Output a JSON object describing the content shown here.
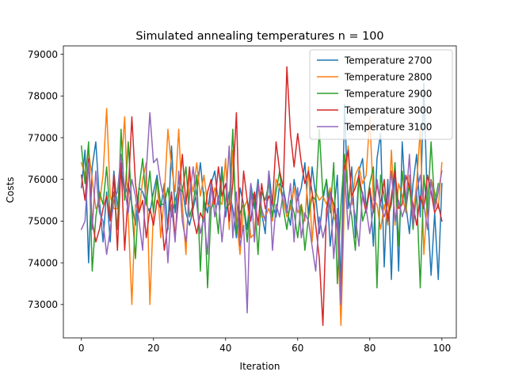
{
  "chart_data": {
    "type": "line",
    "title": "Simulated annealing temperatures n = 100",
    "xlabel": "Iteration",
    "ylabel": "Costs",
    "xlim": [
      -5,
      104
    ],
    "ylim": [
      72200,
      79200
    ],
    "xticks": [
      0,
      20,
      40,
      60,
      80,
      100
    ],
    "yticks": [
      73000,
      74000,
      75000,
      76000,
      77000,
      78000,
      79000
    ],
    "grid": false,
    "legend_position": "top-right",
    "series": [
      {
        "name": "Temperature 2700",
        "color": "#1f77b4",
        "values": [
          75800,
          76700,
          74000,
          76300,
          76900,
          75500,
          74500,
          75700,
          74500,
          76200,
          75300,
          76300,
          75600,
          75900,
          75400,
          74900,
          75800,
          75700,
          75400,
          75200,
          75700,
          76100,
          75300,
          75900,
          74800,
          76800,
          75200,
          76000,
          75800,
          75200,
          74900,
          75300,
          75700,
          76400,
          75500,
          75200,
          75900,
          76200,
          75400,
          76300,
          75100,
          75700,
          75300,
          74600,
          75800,
          75400,
          74800,
          75900,
          75300,
          76000,
          75200,
          74700,
          76200,
          75400,
          75100,
          75900,
          75800,
          75300,
          74900,
          76000,
          75500,
          75800,
          76400,
          75100,
          76300,
          75600,
          74700,
          75500,
          76000,
          74400,
          75200,
          76100,
          73400,
          77800,
          75300,
          76300,
          74600,
          76200,
          76500,
          75300,
          75800,
          74400,
          76500,
          77100,
          73900,
          76000,
          73600,
          76400,
          73800,
          76900,
          75400,
          74700,
          75900,
          76600,
          75100,
          78300,
          75300,
          73700,
          75200,
          73600,
          75900
        ]
      },
      {
        "name": "Temperature 2800",
        "color": "#ff7f0e",
        "values": [
          76400,
          76100,
          76700,
          76000,
          75300,
          75400,
          76100,
          77700,
          75600,
          75300,
          75300,
          76200,
          77500,
          75100,
          73000,
          75400,
          75200,
          76000,
          76400,
          73000,
          75300,
          76000,
          74600,
          75600,
          77200,
          76300,
          75700,
          77200,
          75400,
          74200,
          76100,
          75700,
          76400,
          75600,
          76100,
          75400,
          75300,
          75800,
          75500,
          75400,
          76500,
          74800,
          76700,
          75100,
          74200,
          75300,
          75500,
          74600,
          74700,
          75900,
          75100,
          75100,
          75300,
          75000,
          76000,
          75800,
          75500,
          75100,
          75300,
          75800,
          75200,
          75400,
          75000,
          76300,
          74500,
          75700,
          75500,
          75600,
          75400,
          75800,
          75100,
          74900,
          72500,
          75600,
          76800,
          75400,
          76100,
          76300,
          75900,
          76100,
          77500,
          75500,
          75400,
          74800,
          75400,
          74900,
          76700,
          74900,
          75900,
          75600,
          75200,
          76100,
          75100,
          75900,
          77200,
          74200,
          75600,
          76000,
          75700,
          75300,
          76400
        ]
      },
      {
        "name": "Temperature 2900",
        "color": "#2ca02c",
        "values": [
          76800,
          75900,
          76900,
          73800,
          75100,
          75700,
          75400,
          76300,
          75100,
          75700,
          74800,
          77200,
          75500,
          76900,
          75300,
          74100,
          75800,
          76500,
          75400,
          76200,
          75200,
          76000,
          75400,
          75400,
          75800,
          75100,
          75500,
          75800,
          75700,
          76300,
          75100,
          75400,
          76100,
          73800,
          75700,
          73400,
          75300,
          75500,
          74700,
          76200,
          75300,
          75400,
          77200,
          74700,
          75200,
          75400,
          74500,
          75700,
          75600,
          74200,
          75700,
          75500,
          75900,
          75100,
          75700,
          76200,
          75300,
          74800,
          75500,
          75200,
          74600,
          75400,
          74300,
          75100,
          75600,
          75500,
          77200,
          75600,
          76000,
          75200,
          76400,
          73500,
          75400,
          76600,
          75600,
          75100,
          74300,
          76100,
          75000,
          75300,
          75900,
          76300,
          73400,
          76100,
          75600,
          75100,
          75400,
          76400,
          74400,
          76200,
          75300,
          75900,
          74800,
          75700,
          73400,
          76100,
          75200,
          76900,
          75400,
          75900
        ]
      },
      {
        "name": "Temperature 3000",
        "color": "#d62728",
        "values": [
          76100,
          75500,
          76500,
          75000,
          74500,
          74800,
          75300,
          75600,
          75000,
          76100,
          74300,
          76400,
          74300,
          75700,
          77500,
          75900,
          75200,
          75500,
          74600,
          75300,
          74900,
          75500,
          75300,
          74300,
          74900,
          75700,
          74600,
          75600,
          76600,
          75400,
          76300,
          75100,
          74700,
          75200,
          75000,
          75700,
          76000,
          75400,
          76300,
          75600,
          75900,
          75000,
          75900,
          77600,
          74600,
          76200,
          75500,
          75000,
          75700,
          74900,
          75900,
          75300,
          75600,
          75400,
          76900,
          76200,
          75800,
          78700,
          77100,
          76300,
          77100,
          76400,
          75900,
          76200,
          75700,
          74900,
          74100,
          72500,
          75300,
          75700,
          75400,
          74900,
          73200,
          76300,
          76700,
          75600,
          75800,
          76100,
          75600,
          75200,
          75800,
          75200,
          75900,
          75400,
          76000,
          75000,
          75600,
          76200,
          75300,
          75400,
          76100,
          75800,
          75400,
          74900,
          75600,
          75300,
          76100,
          75700,
          75200,
          75400,
          75000
        ]
      },
      {
        "name": "Temperature 3100",
        "color": "#9467bd",
        "values": [
          74800,
          75000,
          76400,
          74800,
          76200,
          75200,
          75000,
          74200,
          74800,
          75500,
          75700,
          76600,
          75800,
          75200,
          76000,
          75600,
          75000,
          74300,
          76200,
          77600,
          76400,
          76500,
          75900,
          75500,
          74000,
          75400,
          74500,
          76200,
          75000,
          74500,
          75600,
          76300,
          75400,
          74700,
          75100,
          74200,
          75900,
          75100,
          75600,
          74500,
          75400,
          76800,
          74600,
          75700,
          74400,
          74900,
          72800,
          75900,
          74500,
          75900,
          75300,
          75000,
          76200,
          74300,
          75400,
          75100,
          75700,
          75200,
          75900,
          74500,
          75800,
          74600,
          75200,
          75000,
          74400,
          73800,
          75100,
          74600,
          75000,
          75700,
          74100,
          75300,
          73000,
          76200,
          74800,
          75600,
          75100,
          74400,
          75700,
          75300,
          74700,
          75300,
          76000,
          75400,
          75100,
          75400,
          76200,
          75000,
          75500,
          75100,
          75400,
          76600,
          74900,
          75700,
          76100,
          75400,
          74800,
          76000,
          75300,
          75700,
          76200
        ]
      }
    ]
  }
}
